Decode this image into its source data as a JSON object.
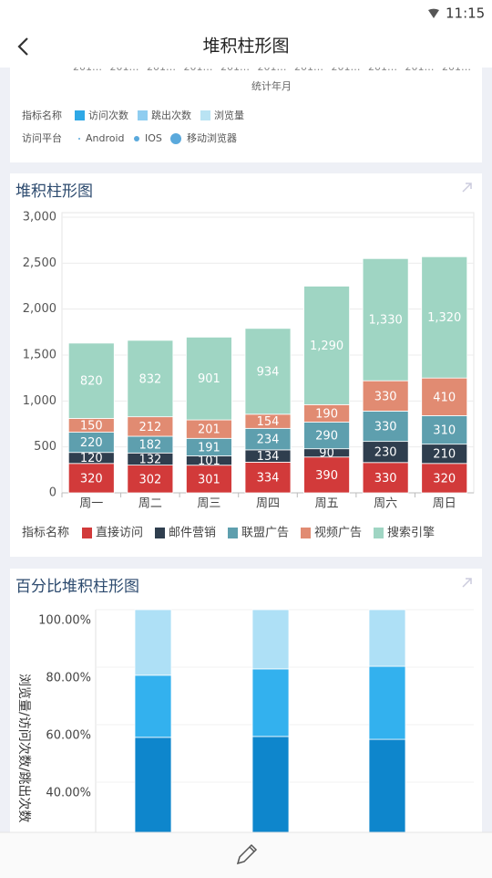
{
  "status_bar": {
    "time": "11:15"
  },
  "header": {
    "title": "堆积柱形图"
  },
  "prev_card": {
    "x_ticks": [
      "201…",
      "201…",
      "201…",
      "201…",
      "201…",
      "201…",
      "201…",
      "201…",
      "201…",
      "201…",
      "201…"
    ],
    "x_label": "统计年月",
    "legend_rows": [
      {
        "title": "指标名称",
        "items": [
          {
            "name": "访问次数",
            "color": "#2ea8e6"
          },
          {
            "name": "跳出次数",
            "color": "#8fcdf0"
          },
          {
            "name": "浏览量",
            "color": "#b9e3f3"
          }
        ]
      },
      {
        "title": "访问平台",
        "items": [
          {
            "name": "Android",
            "color": "#5aa9dc"
          },
          {
            "name": "IOS",
            "color": "#5aa9dc"
          },
          {
            "name": "移动浏览器",
            "color": "#5aa9dc"
          }
        ]
      }
    ]
  },
  "chart_data": [
    {
      "type": "stacked_bar",
      "title": "堆积柱形图",
      "categories": [
        "周一",
        "周二",
        "周三",
        "周四",
        "周五",
        "周六",
        "周日"
      ],
      "series": [
        {
          "name": "直接访问",
          "color": "#d23a3a",
          "values": [
            320,
            302,
            301,
            334,
            390,
            330,
            320
          ]
        },
        {
          "name": "邮件营销",
          "color": "#2f3e4e",
          "values": [
            120,
            132,
            101,
            134,
            90,
            230,
            210
          ]
        },
        {
          "name": "联盟广告",
          "color": "#5e9fae",
          "values": [
            220,
            182,
            191,
            234,
            290,
            330,
            310
          ]
        },
        {
          "name": "视频广告",
          "color": "#e18b72",
          "values": [
            150,
            212,
            201,
            154,
            190,
            330,
            410
          ]
        },
        {
          "name": "搜索引擎",
          "color": "#9fd5c3",
          "values": [
            820,
            832,
            901,
            934,
            1290,
            1330,
            1320
          ],
          "value_labels": [
            "820",
            "832",
            "901",
            "934",
            "1,290",
            "1,330",
            "1,320"
          ]
        }
      ],
      "ylim": [
        0,
        3000
      ],
      "yticks": [
        0,
        500,
        {
          "value": 1000,
          "label": "1,000"
        },
        {
          "value": 1500,
          "label": "1,500"
        },
        {
          "value": 2000,
          "label": "2,000"
        },
        {
          "value": 2500,
          "label": "2,500"
        },
        {
          "value": 3000,
          "label": "3,000"
        }
      ],
      "grid": true,
      "legend_title": "指标名称"
    },
    {
      "type": "percent_stacked_bar",
      "title": "百分比堆积柱形图",
      "ylabel": "浏览量/访问次数/跳出次数",
      "series": [
        {
          "color": "#0e86cc",
          "values": [
            55.6,
            55.9,
            54.9
          ]
        },
        {
          "color": "#33b1ee",
          "values": [
            21.6,
            23.5,
            25.4
          ]
        },
        {
          "color": "#aee0f6",
          "values": [
            22.8,
            20.6,
            19.7
          ]
        }
      ],
      "ylim": [
        0,
        100
      ],
      "yticks": [
        {
          "value": 40,
          "label": "40.00%"
        },
        {
          "value": 60,
          "label": "60.00%"
        },
        {
          "value": 80,
          "label": "80.00%"
        },
        {
          "value": 100,
          "label": "100.00%"
        }
      ],
      "grid": true
    }
  ]
}
